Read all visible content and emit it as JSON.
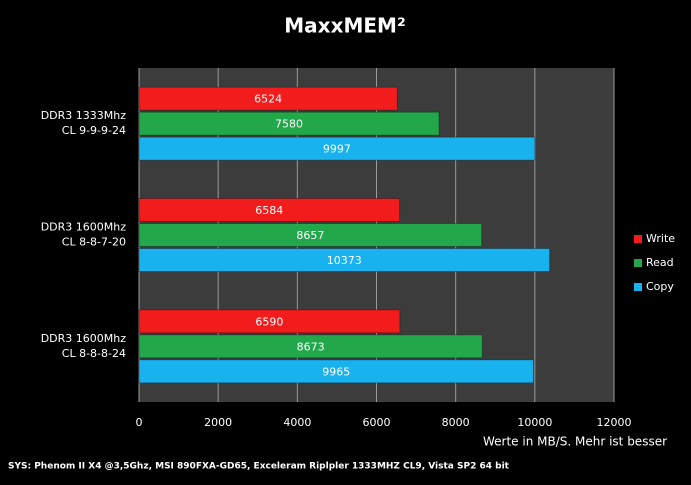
{
  "chart_data": {
    "type": "bar",
    "orientation": "horizontal",
    "title": "MaxxMEM²",
    "categories": [
      [
        "DDR3 1333Mhz",
        "CL 9-9-9-24"
      ],
      [
        "DDR3 1600Mhz",
        "CL 8-8-7-20"
      ],
      [
        "DDR3 1600Mhz",
        "CL 8-8-8-24"
      ]
    ],
    "series": [
      {
        "name": "Write",
        "color": "#f21c1c",
        "values": [
          6524,
          6584,
          6590
        ]
      },
      {
        "name": "Read",
        "color": "#22a84a",
        "values": [
          7580,
          8657,
          8673
        ]
      },
      {
        "name": "Copy",
        "color": "#18b2ef",
        "values": [
          9997,
          10373,
          9965
        ]
      }
    ],
    "xlim": [
      0,
      12000
    ],
    "xticks": [
      0,
      2000,
      4000,
      6000,
      8000,
      10000,
      12000
    ],
    "xlabel": "Werte in MB/S. Mehr ist besser",
    "footnote": "SYS: Phenom II X4 @3,5Ghz, MSI 890FXA-GD65, Exceleram Riplpler 1333MHZ CL9, Vista SP2 64 bit",
    "grid": true,
    "legend": "right"
  }
}
